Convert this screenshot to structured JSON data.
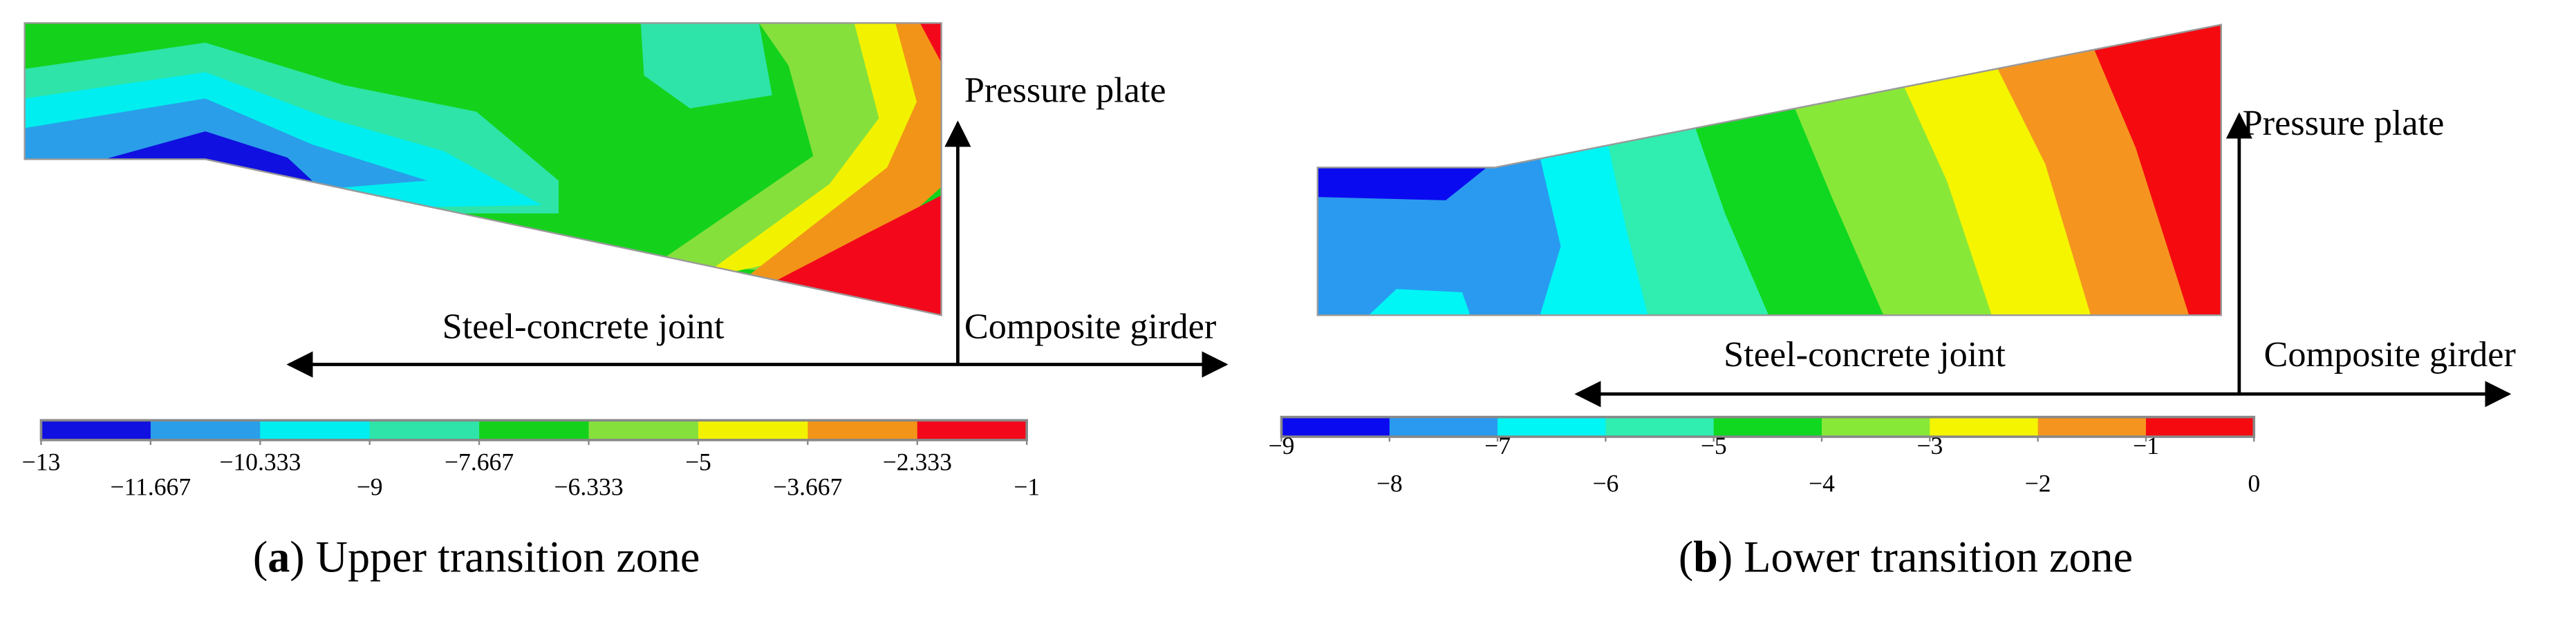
{
  "panels": [
    {
      "caption": {
        "open": "(",
        "letter": "a",
        "rest": ") Upper transition zone"
      },
      "labels": {
        "vertical": "Pressure plate",
        "left": "Steel-concrete joint",
        "right": "Composite girder"
      },
      "colorbar": {
        "colors": [
          "#1010e0",
          "#2a9ee8",
          "#00eef0",
          "#2ee4a8",
          "#14d21c",
          "#86e03c",
          "#f2f200",
          "#f29418",
          "#f2081a"
        ],
        "ticks": [
          {
            "value": -13,
            "label": "−13"
          },
          {
            "value": -11.667,
            "label": "−11.667"
          },
          {
            "value": -10.333,
            "label": "−10.333"
          },
          {
            "value": -9,
            "label": "−9"
          },
          {
            "value": -7.667,
            "label": "−7.667"
          },
          {
            "value": -6.333,
            "label": "−6.333"
          },
          {
            "value": -5,
            "label": "−5"
          },
          {
            "value": -3.667,
            "label": "−3.667"
          },
          {
            "value": -2.333,
            "label": "−2.333"
          },
          {
            "value": -1,
            "label": "−1"
          }
        ]
      }
    },
    {
      "caption": {
        "open": "(",
        "letter": "b",
        "rest": ") Lower transition zone"
      },
      "labels": {
        "vertical": "Pressure plate",
        "left": "Steel-concrete joint",
        "right": "Composite girder"
      },
      "colorbar": {
        "colors": [
          "#0a0af0",
          "#2a9af0",
          "#00f5f5",
          "#30eeb0",
          "#10d820",
          "#88e838",
          "#f5f500",
          "#f59520",
          "#f50a10"
        ],
        "ticks": [
          {
            "value": -9,
            "label": "−9"
          },
          {
            "value": -8,
            "label": "−8"
          },
          {
            "value": -7,
            "label": "−7"
          },
          {
            "value": -6,
            "label": "−6"
          },
          {
            "value": -5,
            "label": "−5"
          },
          {
            "value": -4,
            "label": "−4"
          },
          {
            "value": -3,
            "label": "−3"
          },
          {
            "value": -2,
            "label": "−2"
          },
          {
            "value": -1,
            "label": "−1"
          },
          0
        ]
      }
    }
  ]
}
